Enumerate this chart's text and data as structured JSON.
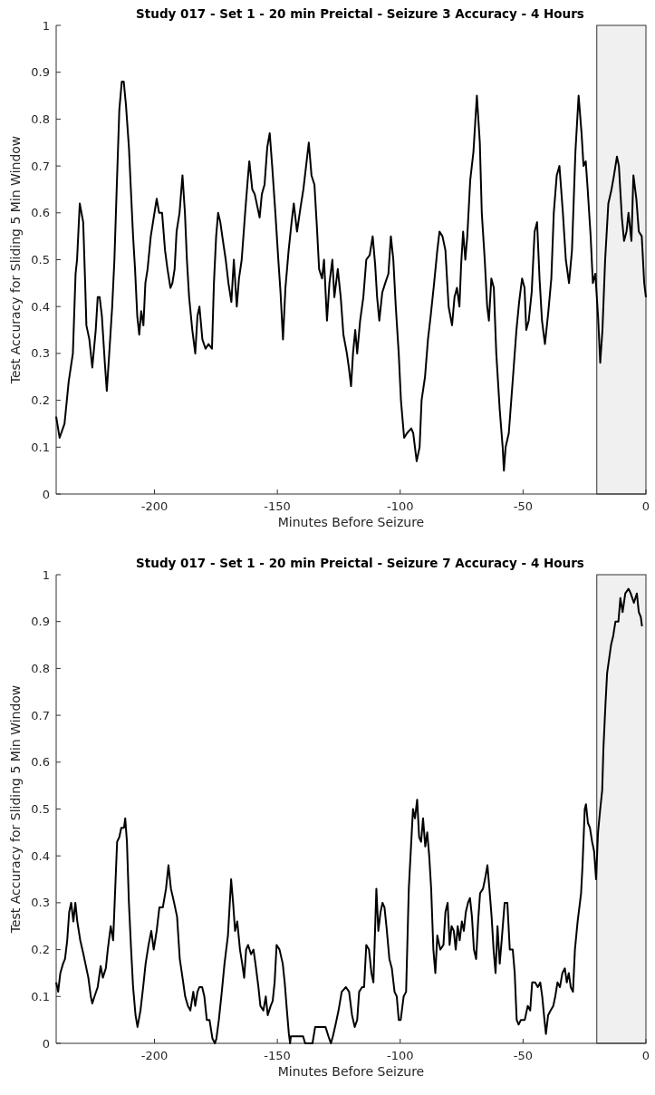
{
  "chart_data": [
    {
      "type": "line",
      "title": "Study 017 - Set 1 - 20 min Preictal -  Seizure 3 Accuracy - 4 Hours",
      "xlabel": "Minutes Before Seizure",
      "ylabel": "Test Accuracy for Sliding 5 Min Window",
      "color": "#000000",
      "xlim": [
        -240,
        0
      ],
      "ylim": [
        0,
        1
      ],
      "xticks": [
        -200,
        -150,
        -100,
        -50,
        0
      ],
      "yticks": [
        0,
        0.1,
        0.2,
        0.3,
        0.4,
        0.5,
        0.6,
        0.7,
        0.8,
        0.9,
        1
      ],
      "bands": [
        {
          "axis": "x",
          "from": -20,
          "to": 0,
          "color": "#f0f0f0"
        }
      ],
      "x": [
        -240,
        -238.6,
        -236.6,
        -234.9,
        -233.2,
        -232.1,
        -231.5,
        -230.4,
        -229.0,
        -228.2,
        -227.7,
        -226.5,
        -225.3,
        -223.9,
        -223.1,
        -222.3,
        -221.4,
        -220.2,
        -219.4,
        -218.4,
        -217.2,
        -216.3,
        -215.5,
        -214.3,
        -213.3,
        -212.5,
        -211.6,
        -210.4,
        -209.6,
        -208.7,
        -207.9,
        -207.0,
        -206.2,
        -205.4,
        -204.5,
        -203.7,
        -202.8,
        -201.5,
        -200.3,
        -199.1,
        -198.1,
        -196.9,
        -195.7,
        -194.7,
        -193.5,
        -192.7,
        -191.8,
        -191.0,
        -189.8,
        -188.6,
        -187.6,
        -186.8,
        -185.9,
        -184.6,
        -183.4,
        -182.5,
        -181.7,
        -180.5,
        -179.2,
        -178.0,
        -176.6,
        -175.8,
        -174.9,
        -174.1,
        -173.2,
        -172.4,
        -171.0,
        -169.9,
        -168.7,
        -167.7,
        -166.5,
        -165.6,
        -164.5,
        -163.1,
        -161.9,
        -161.4,
        -160.2,
        -159.2,
        -158.0,
        -157.2,
        -156.3,
        -155.2,
        -154.1,
        -153.1,
        -152.1,
        -150.8,
        -149.6,
        -148.7,
        -147.7,
        -146.7,
        -145.4,
        -144.2,
        -143.3,
        -142.0,
        -140.6,
        -139.4,
        -138.3,
        -137.2,
        -136.1,
        -134.9,
        -133.9,
        -133.0,
        -131.8,
        -131.0,
        -129.8,
        -128.8,
        -127.6,
        -126.8,
        -125.4,
        -124.2,
        -123.1,
        -121.7,
        -120.9,
        -120.0,
        -119.2,
        -118.3,
        -117.5,
        -116.3,
        -115.0,
        -113.8,
        -112.4,
        -111.2,
        -110.2,
        -109.4,
        -108.5,
        -107.3,
        -106.1,
        -104.8,
        -103.8,
        -102.8,
        -101.8,
        -100.6,
        -99.7,
        -98.4,
        -97.2,
        -95.5,
        -94.7,
        -93.3,
        -92.1,
        -91.3,
        -89.9,
        -88.7,
        -87.6,
        -86.2,
        -84.9,
        -84.0,
        -82.8,
        -81.6,
        -80.3,
        -78.9,
        -77.9,
        -76.9,
        -75.9,
        -75.2,
        -74.4,
        -73.5,
        -72.7,
        -71.5,
        -70.2,
        -68.8,
        -67.6,
        -66.8,
        -65.6,
        -64.6,
        -63.9,
        -62.9,
        -61.9,
        -60.9,
        -59.5,
        -58.3,
        -57.8,
        -57.1,
        -55.8,
        -54.1,
        -52.7,
        -51.6,
        -50.4,
        -49.4,
        -48.7,
        -47.7,
        -46.5,
        -45.3,
        -44.3,
        -43.3,
        -42.3,
        -41.1,
        -39.7,
        -38.5,
        -37.5,
        -36.3,
        -35.2,
        -33.8,
        -32.6,
        -31.3,
        -30.1,
        -28.7,
        -27.4,
        -26.2,
        -25.4,
        -24.5,
        -23.7,
        -22.5,
        -21.6,
        -20.6,
        -19.5,
        -18.6,
        -17.7,
        -16.6,
        -15.3,
        -14.0,
        -13.0,
        -11.8,
        -11.0,
        -9.8,
        -8.9,
        -7.9,
        -7.1,
        -5.9,
        -5.1,
        -3.9,
        -2.9,
        -1.7,
        -0.7,
        0
      ],
      "values": [
        0.165,
        0.12,
        0.15,
        0.24,
        0.3,
        0.47,
        0.5,
        0.62,
        0.58,
        0.45,
        0.36,
        0.33,
        0.27,
        0.35,
        0.42,
        0.42,
        0.38,
        0.28,
        0.22,
        0.3,
        0.4,
        0.5,
        0.63,
        0.82,
        0.88,
        0.88,
        0.83,
        0.74,
        0.65,
        0.55,
        0.48,
        0.38,
        0.34,
        0.39,
        0.36,
        0.45,
        0.48,
        0.55,
        0.59,
        0.63,
        0.6,
        0.6,
        0.52,
        0.48,
        0.44,
        0.45,
        0.48,
        0.56,
        0.6,
        0.68,
        0.6,
        0.5,
        0.42,
        0.35,
        0.3,
        0.38,
        0.4,
        0.33,
        0.31,
        0.32,
        0.31,
        0.45,
        0.55,
        0.6,
        0.58,
        0.55,
        0.5,
        0.45,
        0.41,
        0.5,
        0.4,
        0.46,
        0.5,
        0.6,
        0.68,
        0.71,
        0.65,
        0.64,
        0.61,
        0.59,
        0.64,
        0.66,
        0.74,
        0.77,
        0.7,
        0.6,
        0.5,
        0.43,
        0.33,
        0.44,
        0.52,
        0.58,
        0.62,
        0.56,
        0.61,
        0.65,
        0.7,
        0.75,
        0.68,
        0.66,
        0.57,
        0.48,
        0.46,
        0.5,
        0.37,
        0.45,
        0.5,
        0.42,
        0.48,
        0.42,
        0.34,
        0.3,
        0.27,
        0.23,
        0.3,
        0.35,
        0.3,
        0.37,
        0.42,
        0.5,
        0.51,
        0.55,
        0.49,
        0.42,
        0.37,
        0.43,
        0.45,
        0.47,
        0.55,
        0.5,
        0.4,
        0.3,
        0.2,
        0.12,
        0.13,
        0.14,
        0.13,
        0.07,
        0.1,
        0.2,
        0.25,
        0.33,
        0.38,
        0.45,
        0.52,
        0.56,
        0.55,
        0.52,
        0.4,
        0.36,
        0.42,
        0.44,
        0.4,
        0.49,
        0.56,
        0.5,
        0.55,
        0.67,
        0.73,
        0.85,
        0.75,
        0.6,
        0.5,
        0.4,
        0.37,
        0.46,
        0.44,
        0.3,
        0.18,
        0.1,
        0.05,
        0.1,
        0.13,
        0.25,
        0.35,
        0.41,
        0.46,
        0.44,
        0.35,
        0.37,
        0.43,
        0.56,
        0.58,
        0.46,
        0.37,
        0.32,
        0.39,
        0.46,
        0.6,
        0.68,
        0.7,
        0.6,
        0.5,
        0.45,
        0.52,
        0.73,
        0.85,
        0.77,
        0.7,
        0.71,
        0.65,
        0.55,
        0.45,
        0.47,
        0.38,
        0.28,
        0.35,
        0.5,
        0.62,
        0.65,
        0.68,
        0.72,
        0.7,
        0.59,
        0.54,
        0.56,
        0.6,
        0.54,
        0.68,
        0.63,
        0.56,
        0.55,
        0.45,
        0.42
      ]
    },
    {
      "type": "line",
      "title": "Study 017 - Set 1 - 20 min Preictal -  Seizure 7 Accuracy - 4 Hours",
      "xlabel": "Minutes Before Seizure",
      "ylabel": "Test Accuracy for Sliding 5 Min Window",
      "color": "#000000",
      "xlim": [
        -240,
        0
      ],
      "ylim": [
        0,
        1
      ],
      "xticks": [
        -200,
        -150,
        -100,
        -50,
        0
      ],
      "yticks": [
        0,
        0.1,
        0.2,
        0.3,
        0.4,
        0.5,
        0.6,
        0.7,
        0.8,
        0.9,
        1
      ],
      "bands": [
        {
          "axis": "x",
          "from": -20,
          "to": 0,
          "color": "#f0f0f0"
        }
      ],
      "x": [
        -240,
        -239.2,
        -238.3,
        -237.2,
        -236.4,
        -235.5,
        -234.7,
        -233.9,
        -233.0,
        -232.2,
        -231.4,
        -230.2,
        -228.9,
        -228.1,
        -226.9,
        -225.9,
        -225.3,
        -224.4,
        -223.1,
        -221.9,
        -221.0,
        -219.8,
        -219.0,
        -217.8,
        -216.8,
        -216.2,
        -215.2,
        -214.3,
        -213.5,
        -212.4,
        -211.9,
        -211.2,
        -210.4,
        -209.5,
        -208.7,
        -207.7,
        -206.9,
        -205.7,
        -204.6,
        -203.6,
        -202.4,
        -201.3,
        -200.3,
        -199.1,
        -198.0,
        -196.6,
        -195.3,
        -194.3,
        -193.3,
        -192.0,
        -190.8,
        -189.7,
        -188.3,
        -187.5,
        -186.4,
        -185.4,
        -184.2,
        -183.4,
        -182.5,
        -181.7,
        -180.6,
        -179.7,
        -178.7,
        -177.6,
        -176.4,
        -175.4,
        -174.8,
        -173.8,
        -172.6,
        -171.5,
        -170.1,
        -168.8,
        -168.0,
        -167.2,
        -166.3,
        -165.2,
        -164.3,
        -163.5,
        -162.7,
        -161.9,
        -160.7,
        -159.7,
        -158.9,
        -157.7,
        -156.9,
        -155.7,
        -154.7,
        -153.9,
        -152.7,
        -151.9,
        -151.1,
        -150.3,
        -149.1,
        -147.8,
        -147.0,
        -146.1,
        -145.3,
        -144.8,
        -144.5,
        -139.5,
        -138.7,
        -135.7,
        -134.6,
        -130.4,
        -129.2,
        -128.2,
        -127.4,
        -126.3,
        -125.1,
        -123.8,
        -122.1,
        -120.8,
        -119.6,
        -118.5,
        -117.5,
        -116.7,
        -115.5,
        -114.7,
        -113.8,
        -112.7,
        -111.7,
        -110.9,
        -109.7,
        -108.9,
        -108.0,
        -107.2,
        -106.4,
        -105.6,
        -104.4,
        -103.4,
        -102.3,
        -101.4,
        -100.6,
        -99.8,
        -98.6,
        -97.6,
        -96.5,
        -95.6,
        -94.8,
        -94.0,
        -93.1,
        -92.3,
        -91.5,
        -90.7,
        -89.8,
        -89.0,
        -88.2,
        -87.4,
        -86.5,
        -85.7,
        -84.9,
        -83.7,
        -82.4,
        -81.6,
        -80.7,
        -79.9,
        -79.1,
        -78.2,
        -77.4,
        -76.6,
        -75.8,
        -74.9,
        -74.1,
        -73.3,
        -72.4,
        -71.6,
        -70.8,
        -70.0,
        -69.1,
        -68.3,
        -67.5,
        -66.3,
        -65.5,
        -64.5,
        -63.7,
        -62.8,
        -62.0,
        -61.2,
        -60.4,
        -59.5,
        -58.7,
        -57.5,
        -56.4,
        -55.4,
        -54.2,
        -53.4,
        -52.6,
        -51.8,
        -50.9,
        -49.3,
        -48.1,
        -47.1,
        -46.3,
        -45.1,
        -44.0,
        -43.0,
        -42.2,
        -41.3,
        -40.7,
        -39.8,
        -38.8,
        -37.7,
        -36.9,
        -36.0,
        -35.0,
        -34.0,
        -33.0,
        -32.2,
        -31.4,
        -30.6,
        -29.7,
        -28.9,
        -27.8,
        -26.4,
        -25.8,
        -24.9,
        -24.4,
        -23.6,
        -22.8,
        -21.9,
        -21.1,
        -20.3,
        -19.5,
        -18.6,
        -17.8,
        -17.3,
        -16.5,
        -15.8,
        -15.0,
        -14.2,
        -13.3,
        -12.4,
        -11.2,
        -10.4,
        -9.5,
        -8.4,
        -7.1,
        -6.2,
        -4.9,
        -3.7,
        -2.9,
        -2.1,
        -1.6
      ],
      "values": [
        0.13,
        0.11,
        0.15,
        0.17,
        0.18,
        0.22,
        0.28,
        0.3,
        0.26,
        0.3,
        0.26,
        0.22,
        0.19,
        0.17,
        0.14,
        0.1,
        0.085,
        0.1,
        0.12,
        0.165,
        0.14,
        0.16,
        0.2,
        0.25,
        0.22,
        0.3,
        0.43,
        0.44,
        0.46,
        0.46,
        0.48,
        0.43,
        0.3,
        0.2,
        0.12,
        0.06,
        0.035,
        0.07,
        0.12,
        0.17,
        0.21,
        0.24,
        0.2,
        0.24,
        0.29,
        0.29,
        0.33,
        0.38,
        0.33,
        0.3,
        0.27,
        0.18,
        0.13,
        0.1,
        0.08,
        0.07,
        0.11,
        0.08,
        0.11,
        0.12,
        0.12,
        0.1,
        0.05,
        0.05,
        0.01,
        0,
        0.01,
        0.05,
        0.11,
        0.17,
        0.23,
        0.35,
        0.3,
        0.24,
        0.26,
        0.2,
        0.17,
        0.14,
        0.2,
        0.21,
        0.19,
        0.2,
        0.17,
        0.12,
        0.08,
        0.07,
        0.1,
        0.06,
        0.08,
        0.09,
        0.13,
        0.21,
        0.2,
        0.17,
        0.13,
        0.07,
        0.02,
        0,
        0.015,
        0.015,
        0,
        0,
        0.035,
        0.035,
        0.015,
        0,
        0.015,
        0.04,
        0.07,
        0.11,
        0.12,
        0.11,
        0.06,
        0.035,
        0.05,
        0.11,
        0.12,
        0.12,
        0.21,
        0.2,
        0.15,
        0.13,
        0.33,
        0.24,
        0.28,
        0.3,
        0.29,
        0.25,
        0.18,
        0.16,
        0.11,
        0.1,
        0.05,
        0.05,
        0.1,
        0.11,
        0.33,
        0.42,
        0.5,
        0.48,
        0.52,
        0.44,
        0.43,
        0.48,
        0.42,
        0.45,
        0.4,
        0.33,
        0.2,
        0.15,
        0.23,
        0.2,
        0.21,
        0.28,
        0.3,
        0.21,
        0.25,
        0.24,
        0.2,
        0.25,
        0.22,
        0.26,
        0.24,
        0.28,
        0.3,
        0.31,
        0.27,
        0.2,
        0.18,
        0.26,
        0.32,
        0.33,
        0.35,
        0.38,
        0.33,
        0.27,
        0.2,
        0.15,
        0.25,
        0.17,
        0.22,
        0.3,
        0.3,
        0.2,
        0.2,
        0.15,
        0.05,
        0.04,
        0.05,
        0.05,
        0.08,
        0.07,
        0.13,
        0.13,
        0.12,
        0.13,
        0.1,
        0.05,
        0.02,
        0.06,
        0.07,
        0.08,
        0.1,
        0.13,
        0.12,
        0.15,
        0.16,
        0.13,
        0.15,
        0.12,
        0.11,
        0.2,
        0.26,
        0.32,
        0.38,
        0.5,
        0.51,
        0.47,
        0.46,
        0.43,
        0.41,
        0.35,
        0.45,
        0.5,
        0.54,
        0.63,
        0.72,
        0.79,
        0.82,
        0.85,
        0.87,
        0.9,
        0.9,
        0.95,
        0.92,
        0.96,
        0.97,
        0.96,
        0.94,
        0.96,
        0.92,
        0.91,
        0.89
      ]
    }
  ]
}
